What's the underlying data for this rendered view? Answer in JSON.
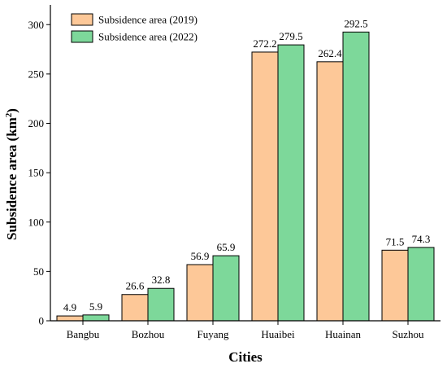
{
  "chart_data": {
    "type": "bar",
    "categories": [
      "Bangbu",
      "Bozhou",
      "Fuyang",
      "Huaibei",
      "Huainan",
      "Suzhou"
    ],
    "series": [
      {
        "name": "Subsidence area (2019)",
        "color": "#FDC898",
        "values": [
          4.9,
          26.6,
          56.9,
          272.2,
          262.4,
          71.5
        ],
        "labels": [
          "4.9",
          "26.6",
          "56.9",
          "272.2",
          "262.4",
          "71.5"
        ]
      },
      {
        "name": "Subsidence area (2022)",
        "color": "#7DD89A",
        "values": [
          5.9,
          32.8,
          65.9,
          279.5,
          292.5,
          74.3
        ],
        "labels": [
          "5.9",
          "32.8",
          "65.9",
          "279.5",
          "292.5",
          "74.3"
        ]
      }
    ],
    "title": "",
    "xlabel": "Cities",
    "ylabel_main": "Subsidence area (km",
    "ylabel_sup": "2",
    "ylabel_end": ")",
    "ylim": [
      0,
      320
    ],
    "yticks": [
      0,
      50,
      100,
      150,
      200,
      250,
      300
    ],
    "grid": false,
    "legend_position": "top-left"
  }
}
